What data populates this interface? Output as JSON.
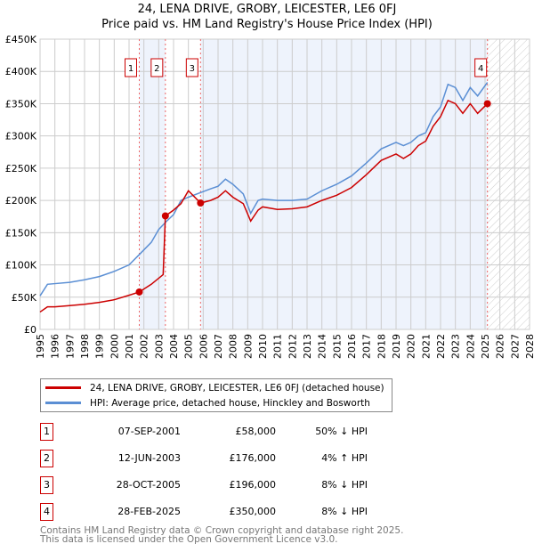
{
  "chart_data": {
    "type": "line",
    "title": "24, LENA DRIVE, GROBY, LEICESTER, LE6 0FJ",
    "subtitle": "Price paid vs. HM Land Registry's House Price Index (HPI)",
    "xlim": [
      1995,
      2028
    ],
    "ylim": [
      0,
      450000
    ],
    "x_ticks": [
      "1995",
      "1996",
      "1997",
      "1998",
      "1999",
      "2000",
      "2001",
      "2002",
      "2003",
      "2004",
      "2005",
      "2006",
      "2007",
      "2008",
      "2009",
      "2010",
      "2011",
      "2012",
      "2013",
      "2014",
      "2015",
      "2016",
      "2017",
      "2018",
      "2019",
      "2020",
      "2021",
      "2022",
      "2023",
      "2024",
      "2025",
      "2026",
      "2027",
      "2028"
    ],
    "y_ticks": [
      "£0",
      "£50K",
      "£100K",
      "£150K",
      "£200K",
      "£250K",
      "£300K",
      "£350K",
      "£400K",
      "£450K"
    ],
    "grid": true,
    "series": [
      {
        "name": "24, LENA DRIVE, GROBY, LEICESTER, LE6 0FJ (detached house)",
        "color": "#cc0000",
        "x": [
          1995,
          1995.5,
          1996,
          1997,
          1998,
          1999,
          2000,
          2001,
          2001.69,
          2002.5,
          2003.3,
          2003.45,
          2004,
          2004.5,
          2005,
          2005.82,
          2006.5,
          2007,
          2007.5,
          2008,
          2008.7,
          2009.2,
          2009.7,
          2010,
          2011,
          2012,
          2013,
          2014,
          2015,
          2016,
          2017,
          2018,
          2019,
          2019.5,
          2020,
          2020.5,
          2021,
          2021.5,
          2022,
          2022.5,
          2023,
          2023.5,
          2024,
          2024.5,
          2025.16
        ],
        "y": [
          27000,
          35000,
          35000,
          37000,
          39000,
          42000,
          46000,
          53000,
          58000,
          70000,
          85000,
          176000,
          185000,
          195000,
          215000,
          196000,
          200000,
          205000,
          215000,
          205000,
          195000,
          168000,
          185000,
          190000,
          186000,
          187000,
          190000,
          200000,
          208000,
          220000,
          240000,
          262000,
          272000,
          265000,
          272000,
          285000,
          292000,
          315000,
          330000,
          355000,
          350000,
          335000,
          350000,
          335000,
          350000
        ]
      },
      {
        "name": "HPI: Average price, detached house, Hinckley and Bosworth",
        "color": "#5b8fd4",
        "x": [
          1995,
          1995.5,
          1996,
          1997,
          1998,
          1999,
          2000,
          2001,
          2001.69,
          2002.5,
          2003,
          2003.5,
          2004,
          2004.5,
          2005,
          2005.8,
          2006.5,
          2007,
          2007.5,
          2008,
          2008.7,
          2009.2,
          2009.7,
          2010,
          2011,
          2012,
          2013,
          2014,
          2015,
          2016,
          2017,
          2018,
          2019,
          2019.5,
          2020,
          2020.5,
          2021,
          2021.5,
          2022,
          2022.5,
          2023,
          2023.5,
          2024,
          2024.5,
          2025.16
        ],
        "y": [
          52000,
          70000,
          71000,
          73000,
          77000,
          82000,
          90000,
          100000,
          116000,
          135000,
          155000,
          167000,
          178000,
          200000,
          205000,
          212000,
          218000,
          222000,
          233000,
          225000,
          210000,
          180000,
          200000,
          202000,
          200000,
          200000,
          202000,
          215000,
          225000,
          238000,
          258000,
          280000,
          290000,
          285000,
          290000,
          300000,
          305000,
          330000,
          345000,
          380000,
          375000,
          355000,
          375000,
          362000,
          383000
        ]
      }
    ],
    "sales": [
      {
        "label": "1",
        "x": 2001.69,
        "y": 58000,
        "date": "07-SEP-2001",
        "price": "£58,000",
        "hpi": "50% ↓ HPI"
      },
      {
        "label": "2",
        "x": 2003.45,
        "y": 176000,
        "date": "12-JUN-2003",
        "price": "£176,000",
        "hpi": "4% ↑ HPI"
      },
      {
        "label": "3",
        "x": 2005.82,
        "y": 196000,
        "date": "28-OCT-2005",
        "price": "£196,000",
        "hpi": "8% ↓ HPI"
      },
      {
        "label": "4",
        "x": 2025.16,
        "y": 350000,
        "date": "28-FEB-2025",
        "price": "£350,000",
        "hpi": "8% ↓ HPI"
      }
    ]
  },
  "footer": [
    "Contains HM Land Registry data © Crown copyright and database right 2025.",
    "This data is licensed under the Open Government Licence v3.0."
  ]
}
